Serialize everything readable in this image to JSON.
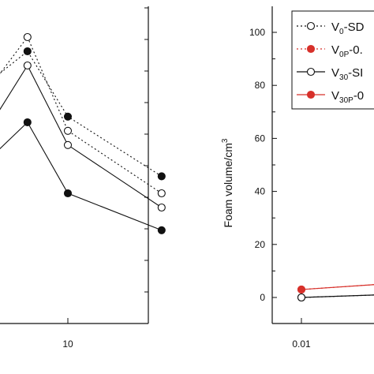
{
  "chart_data": [
    {
      "type": "line",
      "title": "",
      "xlabel": "",
      "ylabel": "",
      "x_scale": "log",
      "x_tick_labels": [
        "10"
      ],
      "series": [
        {
          "marker": "open",
          "style": "dotted",
          "x": [
            1,
            2,
            5,
            10,
            50
          ],
          "y": [
            52,
            75,
            100,
            67,
            45
          ]
        },
        {
          "marker": "filled",
          "style": "dotted",
          "x": [
            1,
            2,
            5,
            10,
            50
          ],
          "y": [
            57,
            80,
            95,
            72,
            51
          ]
        },
        {
          "marker": "open",
          "style": "solid",
          "x": [
            1,
            2,
            5,
            10,
            50
          ],
          "y": [
            45,
            60,
            90,
            62,
            40
          ]
        },
        {
          "marker": "filled",
          "style": "solid",
          "x": [
            1,
            2,
            5,
            10,
            50
          ],
          "y": [
            38,
            52,
            70,
            45,
            32
          ]
        }
      ]
    },
    {
      "type": "line",
      "title": "",
      "xlabel": "",
      "ylabel": "Foam volume/cm",
      "ylabel_sup": "3",
      "x_scale": "log",
      "x_tick_labels": [
        "0.01"
      ],
      "y_ticks": [
        "0",
        "20",
        "40",
        "60",
        "80",
        "100"
      ],
      "ylim": [
        -9,
        110
      ],
      "legend_position": "top-right",
      "series": [
        {
          "name": "V",
          "name_sub": "0",
          "name_suffix": "-SD",
          "marker": "open",
          "style": "dotted",
          "color": "#111111",
          "x": [
            0.01,
            0.1
          ],
          "y": [
            0,
            1
          ]
        },
        {
          "name": "V",
          "name_sub": "0P",
          "name_suffix": "-0.",
          "marker": "filled",
          "style": "dotted",
          "color": "#d7302a",
          "x": [
            0.01,
            0.1
          ],
          "y": [
            3,
            5
          ]
        },
        {
          "name": "V",
          "name_sub": "30",
          "name_suffix": "-SI",
          "marker": "open",
          "style": "solid",
          "color": "#111111",
          "x": [
            0.01,
            0.1
          ],
          "y": [
            0,
            1
          ]
        },
        {
          "name": "V",
          "name_sub": "30P",
          "name_suffix": "-0",
          "marker": "filled",
          "style": "solid",
          "color": "#d7302a",
          "x": [
            0.01,
            0.1
          ],
          "y": [
            3,
            5
          ]
        }
      ]
    }
  ]
}
